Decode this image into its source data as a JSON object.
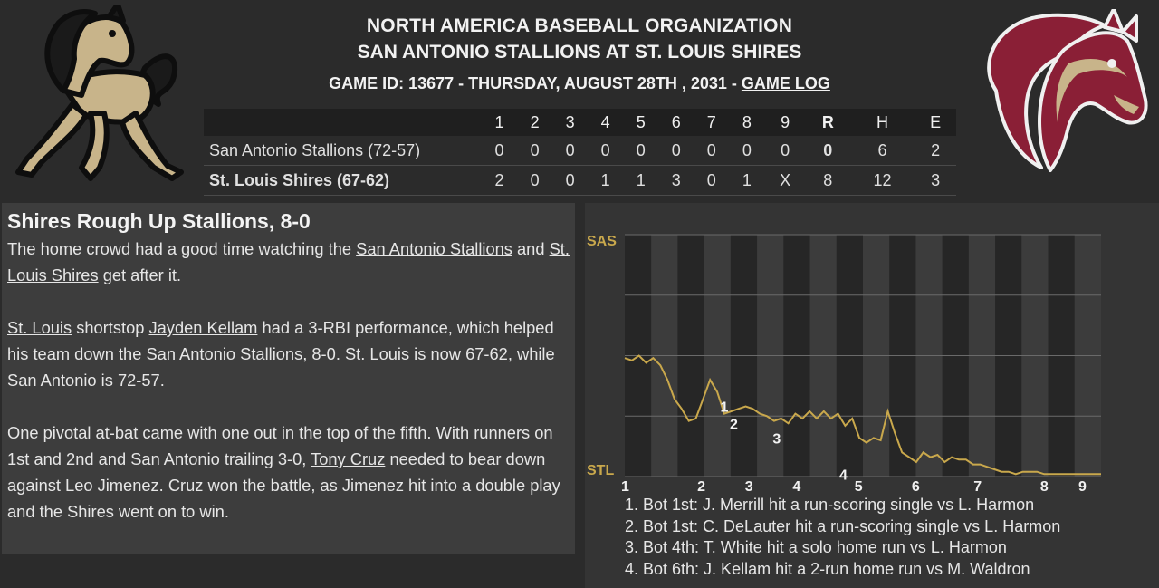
{
  "header": {
    "org": "NORTH AMERICA BASEBALL ORGANIZATION",
    "matchup": "SAN ANTONIO STALLIONS AT ST. LOUIS SHIRES",
    "game_info": "GAME ID: 13677 - THURSDAY, AUGUST 28TH , 2031 - ",
    "game_log_link": "GAME LOG"
  },
  "linescore": {
    "columns": [
      "1",
      "2",
      "3",
      "4",
      "5",
      "6",
      "7",
      "8",
      "9",
      "R",
      "H",
      "E"
    ],
    "rows": [
      {
        "team": "San Antonio Stallions (72-57)",
        "innings": [
          "0",
          "0",
          "0",
          "0",
          "0",
          "0",
          "0",
          "0",
          "0"
        ],
        "r": "0",
        "h": "6",
        "e": "2"
      },
      {
        "team": "St. Louis Shires (67-62)",
        "innings": [
          "2",
          "0",
          "0",
          "1",
          "1",
          "3",
          "0",
          "1",
          "X"
        ],
        "r": "8",
        "h": "12",
        "e": "3"
      }
    ]
  },
  "article": {
    "headline": "Shires Rough Up Stallions, 8-0",
    "p1": {
      "t1": "The home crowd had a good time watching the ",
      "link1": "San Antonio Stallions",
      "t2": " and ",
      "link2": "St. Louis Shires",
      "t3": " get after it."
    },
    "p2": {
      "link1": "St. Louis",
      "t1": " shortstop ",
      "link2": "Jayden Kellam",
      "t2": " had a 3-RBI performance, which helped his team down the ",
      "link3": "San Antonio Stallions",
      "t3": ", 8-0. St. Louis is now 67-62, while San Antonio is 72-57."
    },
    "p3": {
      "t1": "One pivotal at-bat came with one out in the top of the fifth. With runners on 1st and 2nd and San Antonio trailing 3-0, ",
      "link1": "Tony Cruz",
      "t2": " needed to bear down against Leo Jimenez. Cruz won the battle, as Jimenez hit into a double play and the Shires went on to win."
    }
  },
  "chart_data": {
    "type": "line",
    "title": "",
    "y_top_label": "SAS",
    "y_bottom_label": "STL",
    "innings": [
      "1",
      "2",
      "3",
      "4",
      "5",
      "6",
      "7",
      "8",
      "9"
    ],
    "ylim": [
      0,
      1
    ],
    "series": [
      {
        "values": [
          0.49,
          0.48,
          0.5,
          0.47,
          0.49,
          0.46,
          0.4,
          0.32,
          0.28,
          0.23,
          0.24,
          0.32,
          0.4,
          0.35,
          0.26,
          0.27,
          0.28,
          0.29,
          0.28,
          0.26,
          0.25,
          0.23,
          0.24,
          0.22,
          0.26,
          0.24,
          0.27,
          0.24,
          0.27,
          0.24,
          0.26,
          0.21,
          0.24,
          0.16,
          0.14,
          0.16,
          0.15,
          0.27,
          0.18,
          0.1,
          0.08,
          0.06,
          0.1,
          0.08,
          0.09,
          0.06,
          0.08,
          0.07,
          0.07,
          0.05,
          0.05,
          0.04,
          0.03,
          0.02,
          0.02,
          0.01,
          0.02,
          0.02,
          0.02,
          0.01,
          0.01,
          0.01,
          0.01,
          0.01,
          0.01,
          0.01,
          0.01,
          0.01
        ],
        "color": "#c9a84c"
      }
    ],
    "markers": [
      {
        "label": "1",
        "at": 0.21,
        "value": 0.29
      },
      {
        "label": "2",
        "at": 0.23,
        "value": 0.22
      },
      {
        "label": "3",
        "at": 0.32,
        "value": 0.16
      },
      {
        "label": "4",
        "at": 0.46,
        "value": 0.01
      }
    ],
    "colors": {
      "accent": "#c9a84c",
      "shade_a": "#3c3c3c",
      "shade_b": "#262626"
    }
  },
  "events": [
    "1. Bot 1st: J. Merrill hit a run-scoring single vs L. Harmon",
    "2. Bot 1st: C. DeLauter hit a run-scoring single vs L. Harmon",
    "3. Bot 4th: T. White hit a solo home run vs L. Harmon",
    "4. Bot 6th: J. Kellam hit a 2-run home run vs M. Waldron"
  ],
  "logos": {
    "left": "stallions-horse-logo",
    "right": "shires-horse-logo"
  }
}
